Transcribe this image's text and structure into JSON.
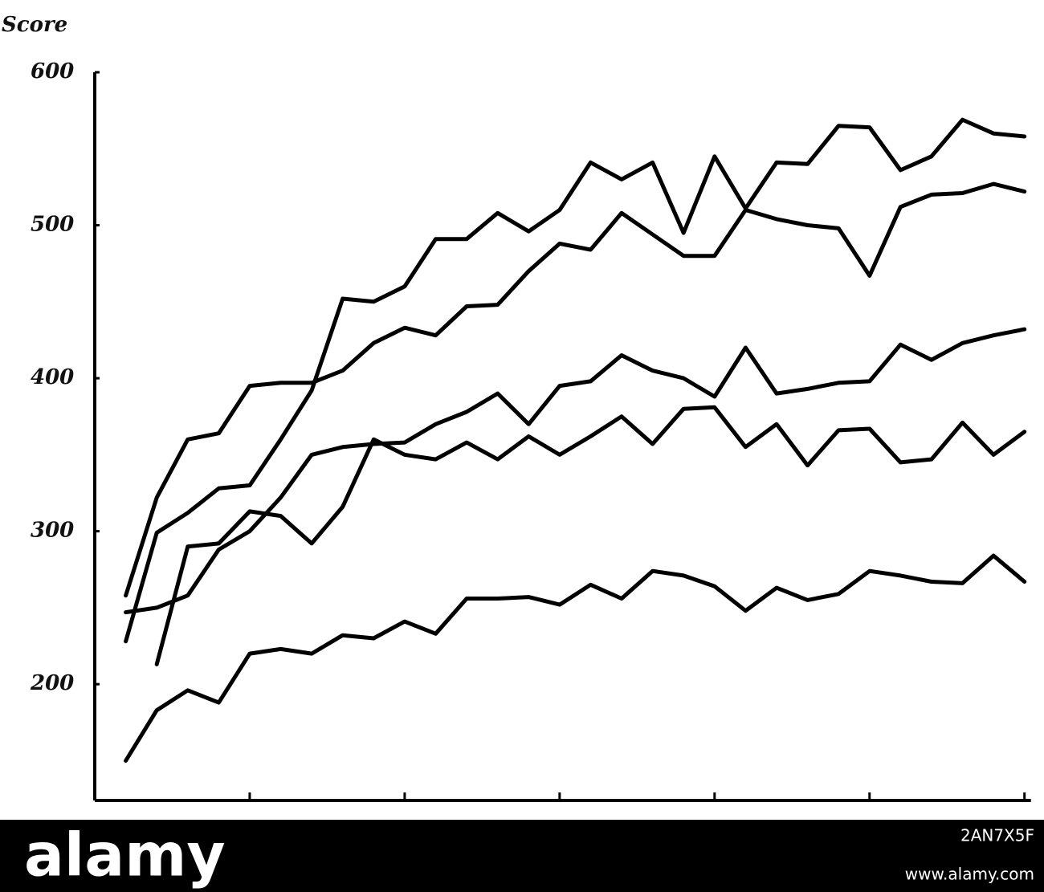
{
  "chart_data": {
    "type": "line",
    "y_label": "Score",
    "x": [
      1,
      2,
      3,
      4,
      5,
      6,
      7,
      8,
      9,
      10,
      11,
      12,
      13,
      14,
      15,
      16,
      17,
      18,
      19,
      20,
      21,
      22,
      23,
      24,
      25,
      26,
      27,
      28,
      29,
      30
    ],
    "xlim": [
      0,
      30.5
    ],
    "xticks": [
      5,
      10,
      15,
      20,
      25,
      30
    ],
    "ylim": [
      124,
      600
    ],
    "yticks": [
      200,
      300,
      400,
      500,
      600
    ],
    "series": [
      {
        "color": "#000000",
        "values": [
          228,
          299,
          312,
          328,
          330,
          360,
          392,
          452,
          450,
          460,
          491,
          491,
          508,
          496,
          510,
          541,
          530,
          541,
          495,
          545,
          511,
          541,
          540,
          565,
          564,
          536,
          545,
          569,
          560,
          558
        ]
      },
      {
        "color": "#000000",
        "values": [
          258,
          322,
          360,
          364,
          395,
          397,
          397,
          405,
          423,
          433,
          428,
          447,
          448,
          470,
          488,
          484,
          508,
          494,
          480,
          480,
          510,
          504,
          500,
          498,
          467,
          512,
          520,
          521,
          527,
          522
        ]
      },
      {
        "color": "#000000",
        "values": [
          247,
          250,
          258,
          288,
          300,
          322,
          350,
          355,
          357,
          358,
          370,
          378,
          390,
          370,
          395,
          398,
          415,
          405,
          400,
          388,
          420,
          390,
          393,
          397,
          398,
          422,
          412,
          423,
          428,
          432
        ]
      },
      {
        "color": "#000000",
        "values": [
          null,
          213,
          290,
          292,
          313,
          310,
          292,
          316,
          360,
          350,
          347,
          358,
          347,
          362,
          350,
          362,
          375,
          357,
          380,
          381,
          355,
          370,
          343,
          366,
          367,
          345,
          347,
          371,
          350,
          365
        ]
      },
      {
        "color": "#000000",
        "values": [
          150,
          183,
          196,
          188,
          220,
          223,
          220,
          232,
          230,
          241,
          233,
          256,
          256,
          257,
          252,
          265,
          256,
          274,
          271,
          264,
          248,
          263,
          255,
          259,
          274,
          271,
          267,
          266,
          284,
          267
        ]
      }
    ]
  },
  "watermark": {
    "brand": "alamy",
    "image_id": "2AN7X5F",
    "url": "www.alamy.com"
  }
}
